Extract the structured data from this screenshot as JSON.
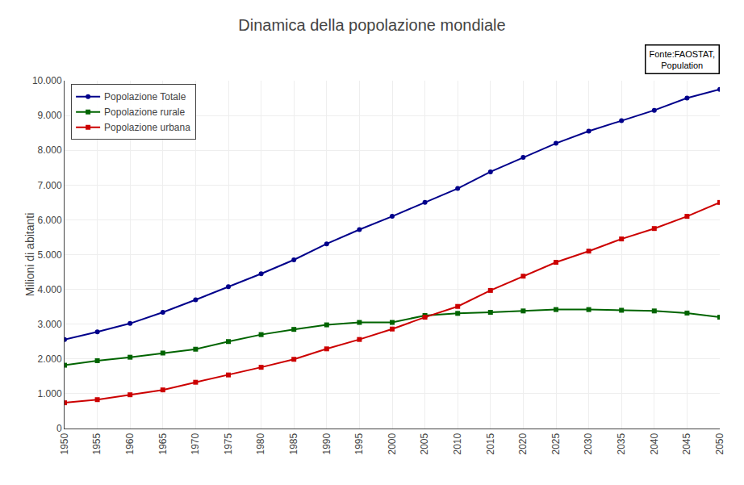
{
  "chart_data": {
    "type": "line",
    "title": "Dinamica della popolazione mondiale",
    "ylabel": "Milioni di abitanti",
    "annotations": [
      "Fonte:FAOSTAT,\nPopulation"
    ],
    "x": [
      1950,
      1955,
      1960,
      1965,
      1970,
      1975,
      1980,
      1985,
      1990,
      1995,
      2000,
      2005,
      2010,
      2015,
      2020,
      2025,
      2030,
      2035,
      2040,
      2045,
      2050
    ],
    "series": [
      {
        "name": "Popolazione Totale",
        "color": "#00008B",
        "marker": "circle",
        "values": [
          2560,
          2780,
          3020,
          3340,
          3700,
          4080,
          4450,
          4850,
          5310,
          5720,
          6100,
          6500,
          6900,
          7380,
          7795,
          8200,
          8550,
          8850,
          9150,
          9500,
          9750
        ]
      },
      {
        "name": "Popolazione rurale",
        "color": "#006400",
        "marker": "square",
        "values": [
          1820,
          1950,
          2050,
          2170,
          2280,
          2500,
          2700,
          2850,
          2980,
          3050,
          3050,
          3250,
          3310,
          3340,
          3380,
          3420,
          3420,
          3400,
          3380,
          3320,
          3200
        ]
      },
      {
        "name": "Popolazione urbana",
        "color": "#CC0000",
        "marker": "square",
        "values": [
          740,
          830,
          970,
          1110,
          1330,
          1540,
          1760,
          1990,
          2290,
          2560,
          2860,
          3200,
          3510,
          3970,
          4380,
          4780,
          5100,
          5450,
          5750,
          6100,
          6500
        ]
      }
    ],
    "xlim": [
      1950,
      2050
    ],
    "xticks": [
      1950,
      1955,
      1960,
      1965,
      1970,
      1975,
      1980,
      1985,
      1990,
      1995,
      2000,
      2005,
      2010,
      2015,
      2020,
      2025,
      2030,
      2035,
      2040,
      2045,
      2050
    ],
    "ylim": [
      0,
      10000
    ],
    "yticks": [
      0,
      {
        "value": 1000,
        "label": "1.000"
      },
      {
        "value": 2000,
        "label": "2.000"
      },
      {
        "value": 3000,
        "label": "3.000"
      },
      {
        "value": 4000,
        "label": "4.000"
      },
      {
        "value": 5000,
        "label": "5.000"
      },
      {
        "value": 6000,
        "label": "6.000"
      },
      {
        "value": 7000,
        "label": "7.000"
      },
      {
        "value": 8000,
        "label": "8.000"
      },
      {
        "value": 9000,
        "label": "9.000"
      },
      {
        "value": 10000,
        "label": "10.000"
      }
    ],
    "grid": true,
    "legend": "upper left"
  }
}
